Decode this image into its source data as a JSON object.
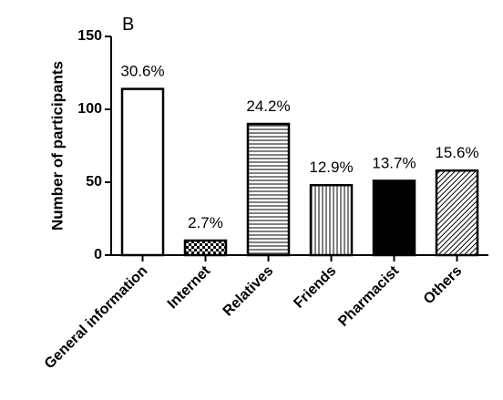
{
  "chart_data": {
    "type": "bar",
    "panel": "B",
    "ylabel": "Number of participants",
    "categories": [
      "General information",
      "Internet",
      "Relatives",
      "Friends",
      "Pharmacist",
      "Others"
    ],
    "values": [
      114,
      10,
      90,
      48,
      51,
      58
    ],
    "annotations": [
      "30.6%",
      "2.7%",
      "24.2%",
      "12.9%",
      "13.7%",
      "15.6%"
    ],
    "patterns": [
      "none",
      "checker",
      "horizontal",
      "vertical",
      "solid",
      "diagonal"
    ],
    "color": "#000000",
    "ylim": [
      0,
      150
    ],
    "yticks": [
      0,
      50,
      100,
      150
    ]
  }
}
